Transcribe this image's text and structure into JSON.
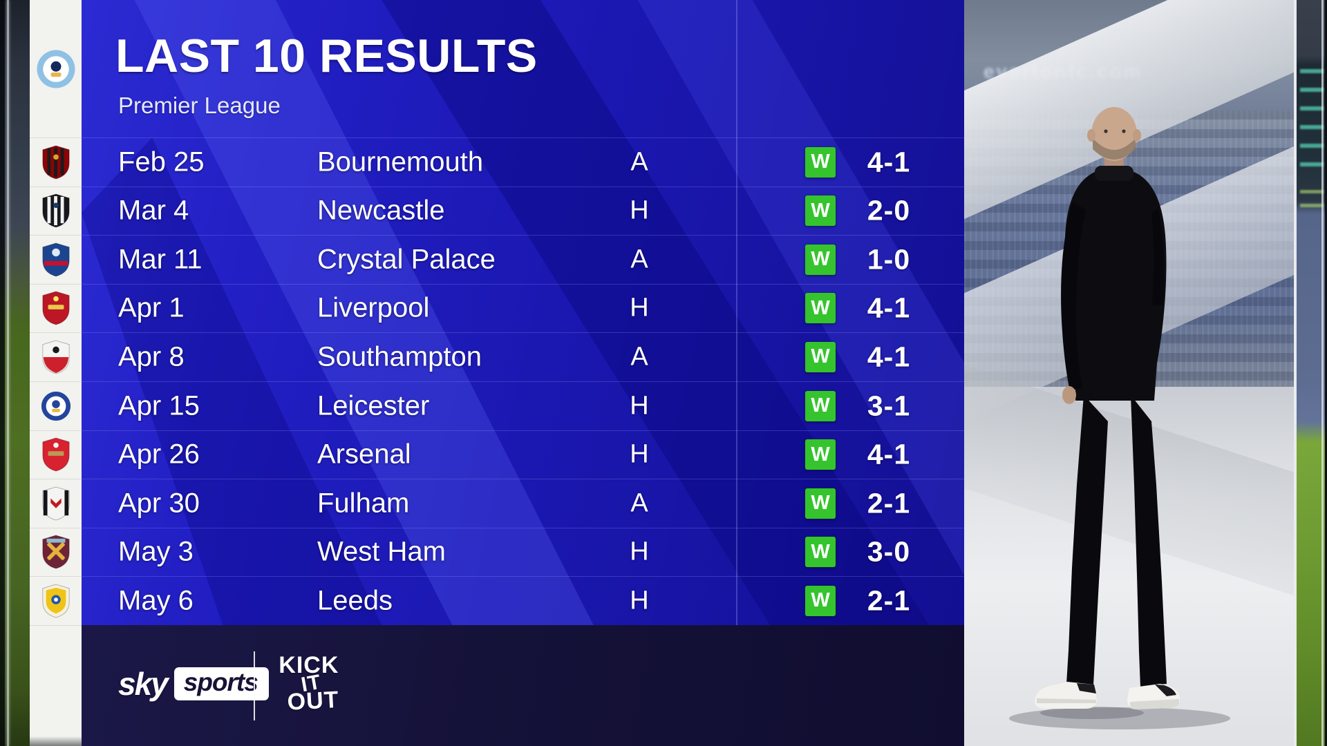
{
  "header": {
    "title": "LAST 10 RESULTS",
    "subtitle": "Premier League"
  },
  "club": {
    "name": "Manchester City",
    "crest": {
      "style": "circle",
      "colors": [
        "#8fc1e4",
        "#ffffff",
        "#13295a",
        "#e4b64e"
      ]
    }
  },
  "results": [
    {
      "date": "Feb 25",
      "opponent": "Bournemouth",
      "venue": "A",
      "outcome": "W",
      "score": "4-1",
      "crest": {
        "style": "stripes",
        "colors": [
          "#8b0406",
          "#1b1b1b",
          "#d8a52c"
        ]
      }
    },
    {
      "date": "Mar 4",
      "opponent": "Newcastle",
      "venue": "H",
      "outcome": "W",
      "score": "2-0",
      "crest": {
        "style": "stripes",
        "colors": [
          "#17181c",
          "#f2f2f2",
          "#1b3a6b"
        ]
      }
    },
    {
      "date": "Mar 11",
      "opponent": "Crystal Palace",
      "venue": "A",
      "outcome": "W",
      "score": "1-0",
      "crest": {
        "style": "palace",
        "colors": [
          "#1b458f",
          "#c4122e",
          "#dfe8f5"
        ]
      }
    },
    {
      "date": "Apr 1",
      "opponent": "Liverpool",
      "venue": "H",
      "outcome": "W",
      "score": "4-1",
      "crest": {
        "style": "bar",
        "colors": [
          "#bc1724",
          "#e9c94c",
          "#f6eb61"
        ]
      }
    },
    {
      "date": "Apr 8",
      "opponent": "Southampton",
      "venue": "A",
      "outcome": "W",
      "score": "4-1",
      "crest": {
        "style": "halves",
        "colors": [
          "#f4f4f2",
          "#cc202c",
          "#18181c"
        ]
      }
    },
    {
      "date": "Apr 15",
      "opponent": "Leicester",
      "venue": "H",
      "outcome": "W",
      "score": "3-1",
      "crest": {
        "style": "circle",
        "colors": [
          "#24459c",
          "#ffffff",
          "#24459c",
          "#e9b842"
        ]
      }
    },
    {
      "date": "Apr 26",
      "opponent": "Arsenal",
      "venue": "H",
      "outcome": "W",
      "score": "4-1",
      "crest": {
        "style": "bar",
        "colors": [
          "#d8222f",
          "#b99a52",
          "#f2f2f0"
        ]
      }
    },
    {
      "date": "Apr 30",
      "opponent": "Fulham",
      "venue": "A",
      "outcome": "W",
      "score": "2-1",
      "crest": {
        "style": "fulham",
        "colors": [
          "#f4f4f2",
          "#151518",
          "#c21a1f"
        ]
      }
    },
    {
      "date": "May 3",
      "opponent": "West Ham",
      "venue": "H",
      "outcome": "W",
      "score": "3-0",
      "crest": {
        "style": "hammers",
        "colors": [
          "#6e2436",
          "#e3b33e",
          "#8fd4f0"
        ]
      }
    },
    {
      "date": "May 6",
      "opponent": "Leeds",
      "venue": "H",
      "outcome": "W",
      "score": "2-1",
      "crest": {
        "style": "leeds",
        "colors": [
          "#f6f1dd",
          "#f0c417",
          "#2358a8"
        ]
      }
    }
  ],
  "footer": {
    "sky_word": "sky",
    "sports_word": "sports",
    "kick_it_out_words": [
      "KICK",
      "IT",
      "OUT"
    ]
  },
  "photo": {
    "banner_text": "evertonfc.com"
  },
  "colors": {
    "panel_blue": "#1b18b2",
    "panel_blue_light": "#2c2bd3",
    "panel_blue_dark": "#130f92",
    "footer_navy": "#151239",
    "win_green": "#35c42d",
    "strip_white": "#f2f2ef",
    "text_white": "#ffffff"
  }
}
